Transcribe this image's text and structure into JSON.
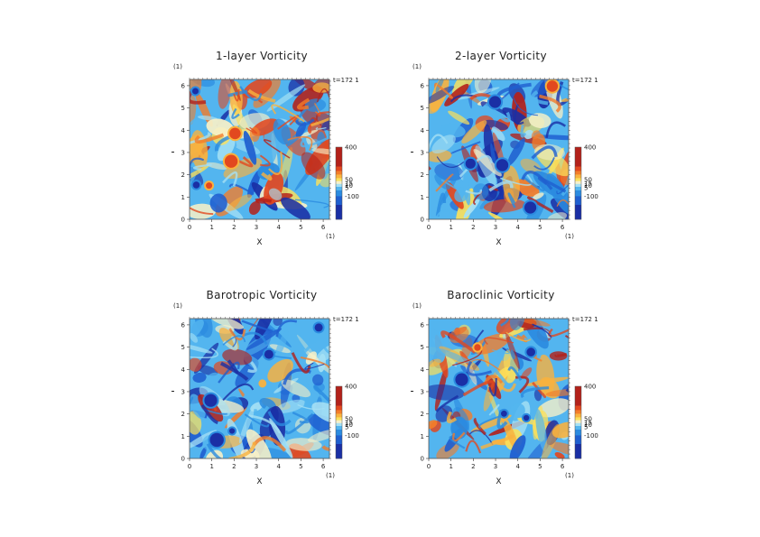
{
  "colors": {
    "scale": [
      "#1a2fa5",
      "#1f5fd0",
      "#2b8be0",
      "#53b5ef",
      "#a5e0f4",
      "#f6f0c8",
      "#fbe05a",
      "#f9b23e",
      "#f37d2a",
      "#e2481f",
      "#b3211a"
    ],
    "frame": "#888888"
  },
  "chart_data": [
    {
      "type": "heatmap",
      "title": "1-layer Vorticity",
      "xlabel": "X",
      "ylabel": "Y",
      "x_unit": "(1)",
      "y_unit": "(1)",
      "time_label": "t=172 1",
      "xlim": [
        0,
        6.28
      ],
      "ylim": [
        0,
        6.28
      ],
      "xticks": [
        "0",
        "1",
        "2",
        "3",
        "4",
        "5",
        "6"
      ],
      "yticks": [
        "0",
        "1",
        "2",
        "3",
        "4",
        "5",
        "6"
      ],
      "colorbar_labels": [
        "400",
        "50",
        "15",
        "10",
        "5",
        "-100"
      ],
      "colorbar_values": [
        400,
        50,
        15,
        10,
        5,
        -100
      ],
      "pattern_seed": 11
    },
    {
      "type": "heatmap",
      "title": "2-layer Vorticity",
      "xlabel": "X",
      "ylabel": "Y",
      "x_unit": "(1)",
      "y_unit": "(1)",
      "time_label": "t=172 1",
      "xlim": [
        0,
        6.28
      ],
      "ylim": [
        0,
        6.28
      ],
      "xticks": [
        "0",
        "1",
        "2",
        "3",
        "4",
        "5",
        "6"
      ],
      "yticks": [
        "0",
        "1",
        "2",
        "3",
        "4",
        "5",
        "6"
      ],
      "colorbar_labels": [
        "400",
        "50",
        "15",
        "10",
        "5",
        "-100"
      ],
      "colorbar_values": [
        400,
        50,
        15,
        10,
        5,
        -100
      ],
      "pattern_seed": 23
    },
    {
      "type": "heatmap",
      "title": "Barotropic Vorticity",
      "xlabel": "X",
      "ylabel": "Y",
      "x_unit": "(1)",
      "y_unit": "(1)",
      "time_label": "t=172 1",
      "xlim": [
        0,
        6.28
      ],
      "ylim": [
        0,
        6.28
      ],
      "xticks": [
        "0",
        "1",
        "2",
        "3",
        "4",
        "5",
        "6"
      ],
      "yticks": [
        "0",
        "1",
        "2",
        "3",
        "4",
        "5",
        "6"
      ],
      "colorbar_labels": [
        "400",
        "50",
        "15",
        "10",
        "5",
        "-100"
      ],
      "colorbar_values": [
        400,
        50,
        15,
        10,
        5,
        -100
      ],
      "pattern_seed": 37
    },
    {
      "type": "heatmap",
      "title": "Baroclinic Vorticity",
      "xlabel": "X",
      "ylabel": "Y",
      "x_unit": "(1)",
      "y_unit": "(1)",
      "time_label": "t=172 1",
      "xlim": [
        0,
        6.28
      ],
      "ylim": [
        0,
        6.28
      ],
      "xticks": [
        "0",
        "1",
        "2",
        "3",
        "4",
        "5",
        "6"
      ],
      "yticks": [
        "0",
        "1",
        "2",
        "3",
        "4",
        "5",
        "6"
      ],
      "colorbar_labels": [
        "400",
        "50",
        "15",
        "10",
        "5",
        "-100"
      ],
      "colorbar_values": [
        400,
        50,
        15,
        10,
        5,
        -100
      ],
      "pattern_seed": 53
    }
  ]
}
